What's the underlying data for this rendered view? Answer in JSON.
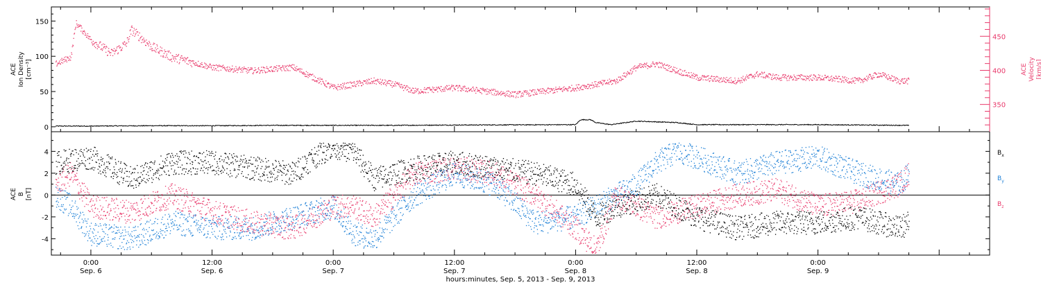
{
  "chart_data": [
    {
      "type": "line",
      "panel": "top",
      "ylabel_left": [
        "ACE",
        "Ion Density",
        "[cm⁻³]"
      ],
      "ylabel_right": [
        "ACE",
        "Velocity",
        "[km/s]"
      ],
      "ylim_left": [
        -7,
        170
      ],
      "ylim_right": [
        310,
        493
      ],
      "yticks_left": [
        0,
        50,
        100,
        150
      ],
      "yticks_right": [
        350,
        400,
        450
      ],
      "colors": {
        "density": "#000000",
        "velocity": "#e8386a"
      },
      "series": [
        {
          "name": "Ion Density",
          "axis": "left",
          "x_hours": [
            -3.5,
            0,
            6,
            12,
            18,
            24,
            30,
            36,
            48,
            48.5,
            49.5,
            50,
            51.5,
            54,
            58,
            60,
            66,
            72,
            81
          ],
          "values": [
            1,
            1,
            1.5,
            1.5,
            2,
            2,
            2,
            2.5,
            3,
            10,
            10,
            6,
            3,
            8,
            6,
            3,
            3,
            3,
            2
          ]
        },
        {
          "name": "Velocity",
          "axis": "right",
          "x_hours": [
            -3.5,
            -2,
            -1.5,
            0,
            2,
            3.5,
            4,
            6,
            8,
            12,
            16,
            20,
            24,
            28,
            30,
            32,
            36,
            42,
            48,
            52,
            54,
            56,
            60,
            64,
            66,
            68,
            72,
            76,
            78,
            80,
            81
          ],
          "values": [
            410,
            420,
            470,
            445,
            425,
            440,
            460,
            435,
            420,
            405,
            400,
            405,
            375,
            385,
            380,
            370,
            375,
            365,
            375,
            385,
            405,
            410,
            390,
            385,
            395,
            390,
            390,
            385,
            395,
            385,
            385
          ]
        }
      ]
    },
    {
      "type": "line",
      "panel": "bottom",
      "ylabel": [
        "ACE",
        "B",
        "[nT]"
      ],
      "ylim": [
        -5.5,
        5.8
      ],
      "yticks": [
        -4,
        -2,
        0,
        2,
        4
      ],
      "legend_position": "right",
      "series": [
        {
          "name": "B",
          "subscript": "x",
          "color": "#000000",
          "x_hours": [
            -3.5,
            0,
            4,
            8,
            12,
            16,
            20,
            22,
            24,
            26,
            28,
            32,
            36,
            40,
            44,
            48,
            50,
            52,
            56,
            60,
            64,
            68,
            72,
            76,
            80,
            81
          ],
          "values": [
            3,
            3.5,
            1.5,
            3,
            3,
            2.5,
            2,
            3.5,
            4.5,
            4,
            1.5,
            2.5,
            3,
            2.5,
            2,
            1,
            -2,
            -1,
            0,
            -2,
            -3,
            -2.5,
            -2.5,
            -2,
            -3,
            -2.5
          ]
        },
        {
          "name": "B",
          "subscript": "y",
          "color": "#1c7fd6",
          "x_hours": [
            -3.5,
            -2,
            0,
            4,
            8,
            12,
            16,
            20,
            24,
            26,
            28,
            30,
            32,
            36,
            40,
            44,
            48,
            52,
            54,
            56,
            58,
            60,
            64,
            68,
            72,
            76,
            80,
            81
          ],
          "values": [
            0,
            -1,
            -3.5,
            -4,
            -2.5,
            -3,
            -3,
            -2,
            -1,
            -3.5,
            -4,
            -2,
            0,
            2,
            1,
            -2.5,
            -2,
            0,
            1,
            3,
            4,
            3.5,
            2,
            3,
            3.5,
            2,
            1,
            2
          ]
        },
        {
          "name": "B",
          "subscript": "z",
          "color": "#e8386a",
          "x_hours": [
            -3.5,
            -2,
            0,
            4,
            8,
            12,
            16,
            20,
            24,
            26,
            28,
            32,
            36,
            40,
            44,
            48,
            50,
            52,
            54,
            56,
            60,
            64,
            68,
            72,
            76,
            80,
            81
          ],
          "values": [
            1,
            2,
            -1,
            -1.5,
            0,
            -1.5,
            -2.5,
            -3,
            -1,
            -1,
            -2,
            2,
            2.5,
            2,
            0,
            -3,
            -5,
            0,
            -1,
            -2,
            -1,
            0,
            0.5,
            -1,
            -0.5,
            1,
            2
          ]
        }
      ]
    },
    {
      "type": "axis",
      "xlabel": "hours:minutes, Sep.  5, 2013 - Sep.  9, 2013",
      "x_hours_range": [
        -3.5,
        89
      ],
      "ticks": [
        {
          "hour": 0,
          "time": "0:00",
          "date": "Sep. 6"
        },
        {
          "hour": 12,
          "time": "12:00",
          "date": "Sep. 6"
        },
        {
          "hour": 24,
          "time": "0:00",
          "date": "Sep. 7"
        },
        {
          "hour": 36,
          "time": "12:00",
          "date": "Sep. 7"
        },
        {
          "hour": 48,
          "time": "0:00",
          "date": "Sep. 8"
        },
        {
          "hour": 60,
          "time": "12:00",
          "date": "Sep. 8"
        },
        {
          "hour": 72,
          "time": "0:00",
          "date": "Sep. 9"
        }
      ]
    }
  ]
}
